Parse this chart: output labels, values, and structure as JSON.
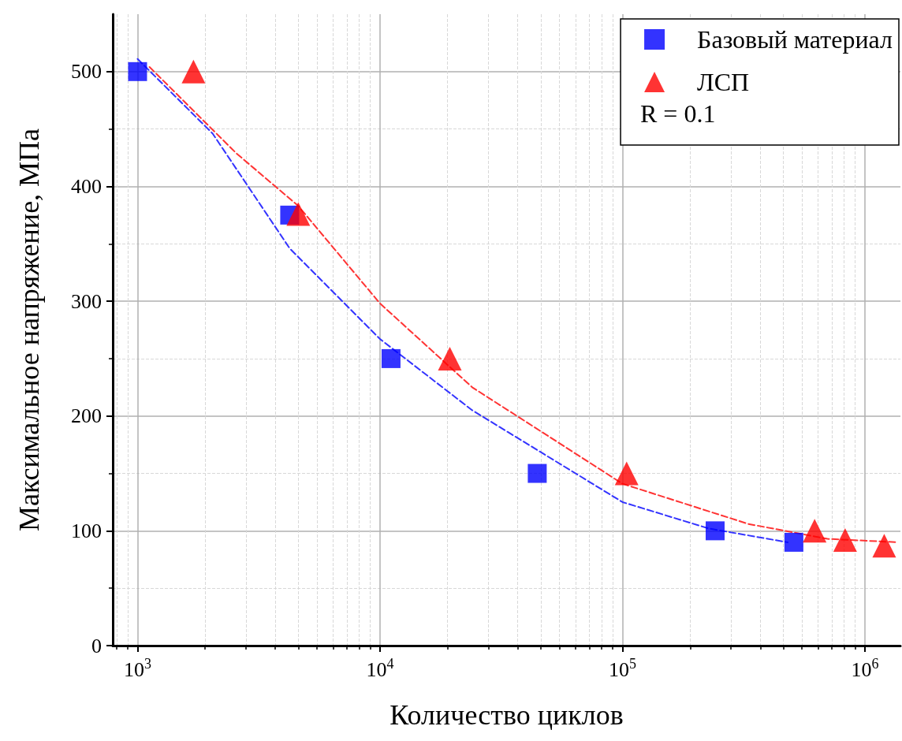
{
  "chart_data": {
    "type": "scatter",
    "xlabel": "Количество циклов",
    "ylabel": "Максимальное напряжение, МПа",
    "log": "x",
    "xlim": [
      790,
      1400000
    ],
    "ylim": [
      0,
      550
    ],
    "xticks": [
      {
        "value": 1000,
        "label": "10$^{3}$"
      },
      {
        "value": 10000,
        "label": "10$^{4}$"
      },
      {
        "value": 100000,
        "label": "10$^{5}$"
      },
      {
        "value": 1000000,
        "label": "10$^{6}$"
      }
    ],
    "yticks": [
      0,
      100,
      200,
      300,
      400,
      500
    ],
    "grid": true,
    "legend": "top right",
    "annotations": [
      "R = 0.1"
    ],
    "series": [
      {
        "type": "line",
        "color": "#3333ff",
        "line_style": "dashed",
        "marker": "none",
        "x": [
          1000,
          2040,
          4240,
          10000,
          24000,
          100000,
          227000,
          480000
        ],
        "values": [
          511,
          446,
          346,
          267,
          205,
          125,
          102,
          90
        ]
      },
      {
        "type": "line",
        "color": "#ff3333",
        "line_style": "dashed",
        "marker": "none",
        "x": [
          1120,
          2550,
          4600,
          10000,
          24000,
          100000,
          330000,
          700000,
          1370000
        ],
        "values": [
          504,
          429,
          383,
          298,
          225,
          141,
          106,
          93,
          90
        ]
      },
      {
        "name": "Базовый материал",
        "color": "#0000ff",
        "marker": "square",
        "x": [
          1000,
          4240,
          11100,
          44500,
          241000,
          509000
        ],
        "values": [
          500,
          375,
          250,
          150,
          100,
          90
        ]
      },
      {
        "name": "ЛСП",
        "color": "#ff0000",
        "marker": "triangle",
        "x": [
          1700,
          4600,
          19400,
          104000,
          620000,
          828000,
          1200000
        ],
        "values": [
          500,
          376,
          250,
          150,
          100,
          92,
          87
        ]
      }
    ]
  }
}
